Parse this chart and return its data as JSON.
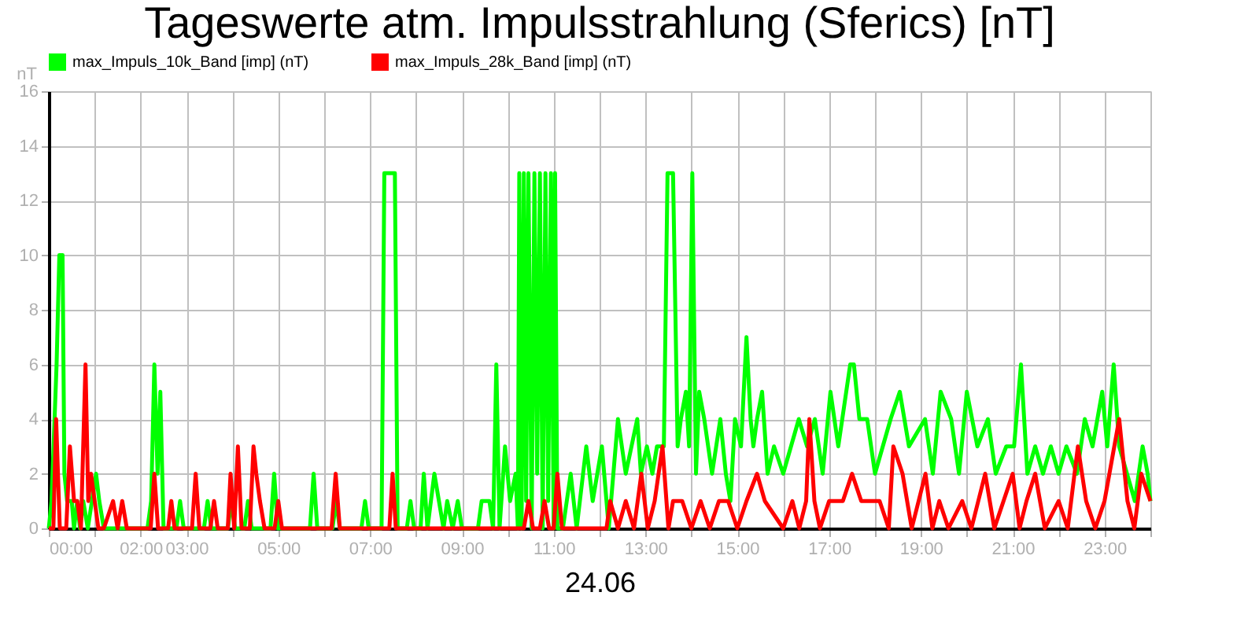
{
  "chart_data": {
    "type": "line",
    "title": "Tageswerte atm. Impulsstrahlung (Sferics) [nT]",
    "xlabel": "24.06",
    "ylabel": "nT",
    "xlim": [
      0,
      24
    ],
    "ylim": [
      0,
      16
    ],
    "yticks": [
      0,
      2,
      4,
      6,
      8,
      10,
      12,
      14,
      16
    ],
    "xticks": [
      {
        "value": 0,
        "label": "00:00"
      },
      {
        "value": 1,
        "label": null
      },
      {
        "value": 2,
        "label": "02:00"
      },
      {
        "value": 3,
        "label": "03:00"
      },
      {
        "value": 4,
        "label": null
      },
      {
        "value": 5,
        "label": "05:00"
      },
      {
        "value": 6,
        "label": null
      },
      {
        "value": 7,
        "label": "07:00"
      },
      {
        "value": 8,
        "label": null
      },
      {
        "value": 9,
        "label": "09:00"
      },
      {
        "value": 10,
        "label": null
      },
      {
        "value": 11,
        "label": "11:00"
      },
      {
        "value": 12,
        "label": null
      },
      {
        "value": 13,
        "label": "13:00"
      },
      {
        "value": 14,
        "label": null
      },
      {
        "value": 15,
        "label": "15:00"
      },
      {
        "value": 16,
        "label": null
      },
      {
        "value": 17,
        "label": "17:00"
      },
      {
        "value": 18,
        "label": null
      },
      {
        "value": 19,
        "label": "19:00"
      },
      {
        "value": 20,
        "label": null
      },
      {
        "value": 21,
        "label": "21:00"
      },
      {
        "value": 22,
        "label": null
      },
      {
        "value": 23,
        "label": "23:00"
      },
      {
        "value": 24,
        "label": null
      }
    ],
    "grid": true,
    "legend": "top left",
    "marker": "none",
    "line_style": "solid",
    "series": [
      {
        "name": "max_Impuls_10k_Band [imp] (nT)",
        "color": "#00ff00",
        "x": [
          0,
          0.06,
          0.17,
          0.23,
          0.3,
          0.34,
          0.4,
          0.5,
          0.55,
          0.62,
          0.68,
          0.75,
          0.85,
          1.03,
          1.1,
          1.2,
          1.3,
          2.15,
          2.23,
          2.3,
          2.37,
          2.43,
          2.5,
          2.78,
          2.86,
          2.94,
          3.38,
          3.46,
          3.54,
          3.9,
          3.98,
          4.06,
          4.26,
          4.34,
          4.42,
          4.83,
          4.91,
          4.99,
          5.69,
          5.77,
          5.85,
          6.18,
          6.26,
          6.34,
          6.81,
          6.89,
          6.97,
          7.25,
          7.31,
          7.54,
          7.6,
          7.8,
          7.88,
          7.96,
          8.1,
          8.17,
          8.25,
          8.4,
          8.5,
          8.6,
          8.68,
          8.8,
          8.91,
          9.0,
          9.35,
          9.43,
          9.6,
          9.68,
          9.75,
          9.82,
          9.94,
          10.05,
          10.17,
          10.22,
          10.25,
          10.3,
          10.35,
          10.4,
          10.45,
          10.52,
          10.58,
          10.64,
          10.7,
          10.76,
          10.82,
          10.88,
          10.94,
          11.0,
          11.03,
          11.08,
          11.2,
          11.37,
          11.5,
          11.71,
          11.85,
          12.05,
          12.2,
          12.4,
          12.57,
          12.82,
          12.9,
          13.03,
          13.15,
          13.25,
          13.4,
          13.48,
          13.6,
          13.7,
          13.77,
          13.88,
          13.95,
          14.02,
          14.1,
          14.17,
          14.28,
          14.45,
          14.63,
          14.75,
          14.85,
          14.95,
          15.08,
          15.2,
          15.29,
          15.35,
          15.43,
          15.54,
          15.66,
          15.8,
          16.0,
          16.34,
          16.52,
          16.69,
          16.86,
          17.03,
          17.2,
          17.46,
          17.54,
          17.66,
          17.83,
          18.0,
          18.34,
          18.54,
          18.74,
          19.09,
          19.26,
          19.43,
          19.66,
          19.83,
          20.0,
          20.23,
          20.46,
          20.63,
          20.86,
          21.03,
          21.18,
          21.32,
          21.49,
          21.66,
          21.83,
          22.0,
          22.17,
          22.4,
          22.57,
          22.74,
          22.95,
          23.06,
          23.2,
          23.32,
          23.49,
          23.66,
          23.83,
          23.94,
          24
        ],
        "values": [
          0,
          1,
          6,
          10,
          10,
          2,
          1,
          1,
          0,
          1,
          0,
          1,
          0,
          2,
          1,
          0,
          0,
          0,
          1,
          6,
          2,
          5,
          0,
          0,
          1,
          0,
          0,
          1,
          0,
          0,
          1,
          0,
          0,
          1,
          0,
          0,
          2,
          0,
          0,
          2,
          0,
          0,
          1,
          0,
          0,
          1,
          0,
          0,
          13,
          13,
          0,
          0,
          1,
          0,
          0,
          2,
          0,
          2,
          1,
          0,
          1,
          0,
          1,
          0,
          0,
          1,
          1,
          0,
          6,
          0,
          3,
          1,
          2,
          0,
          13,
          0,
          13,
          1,
          13,
          0,
          13,
          2,
          13,
          0,
          13,
          1,
          13,
          0,
          13,
          0,
          0,
          2,
          0,
          3,
          1,
          3,
          0,
          4,
          2,
          4,
          2,
          3,
          2,
          3,
          3,
          13,
          13,
          3,
          4,
          5,
          3,
          13,
          2,
          5,
          4,
          2,
          4,
          2,
          1,
          4,
          3,
          7,
          4,
          3,
          4,
          5,
          2,
          3,
          2,
          4,
          3,
          4,
          2,
          5,
          3,
          6,
          6,
          4,
          4,
          2,
          4,
          5,
          3,
          4,
          2,
          5,
          4,
          2,
          5,
          3,
          4,
          2,
          3,
          3,
          6,
          2,
          3,
          2,
          3,
          2,
          3,
          2,
          4,
          3,
          5,
          3,
          6,
          3,
          2,
          1,
          3,
          2,
          1
        ]
      },
      {
        "name": "max_Impuls_28k_Band [imp] (nT)",
        "color": "#ff0000",
        "x": [
          0,
          0.1,
          0.16,
          0.24,
          0.38,
          0.46,
          0.55,
          0.62,
          0.7,
          0.8,
          0.86,
          0.92,
          1.0,
          1.08,
          1.2,
          1.4,
          1.5,
          1.6,
          1.7,
          2.22,
          2.3,
          2.38,
          2.6,
          2.67,
          2.74,
          3.12,
          3.2,
          3.28,
          3.52,
          3.6,
          3.68,
          3.9,
          3.96,
          4.04,
          4.12,
          4.2,
          4.38,
          4.46,
          4.52,
          4.6,
          4.7,
          4.92,
          5.0,
          5.08,
          6.16,
          6.25,
          6.34,
          7.42,
          7.49,
          7.56,
          10.35,
          10.45,
          10.55,
          10.7,
          10.8,
          10.9,
          11.0,
          11.08,
          11.18,
          12.15,
          12.23,
          12.4,
          12.57,
          12.75,
          12.91,
          13.05,
          13.2,
          13.37,
          13.5,
          13.6,
          13.8,
          14.0,
          14.2,
          14.4,
          14.6,
          14.8,
          15.0,
          15.2,
          15.43,
          15.6,
          16.0,
          16.2,
          16.35,
          16.5,
          16.57,
          16.68,
          16.8,
          17.0,
          17.3,
          17.5,
          17.7,
          17.9,
          18.1,
          18.3,
          18.4,
          18.6,
          18.8,
          19.1,
          19.25,
          19.4,
          19.6,
          19.9,
          20.1,
          20.4,
          20.6,
          20.8,
          21.0,
          21.15,
          21.3,
          21.49,
          21.7,
          22.0,
          22.2,
          22.42,
          22.6,
          22.8,
          23.0,
          23.32,
          23.5,
          23.65,
          23.8,
          24
        ],
        "values": [
          0,
          0,
          4,
          0,
          0,
          3,
          1,
          1,
          0,
          6,
          1,
          2,
          1,
          0,
          0,
          1,
          0,
          1,
          0,
          0,
          2,
          0,
          0,
          1,
          0,
          0,
          2,
          0,
          0,
          1,
          0,
          0,
          2,
          0,
          3,
          0,
          0,
          3,
          2,
          1,
          0,
          0,
          1,
          0,
          0,
          2,
          0,
          0,
          2,
          0,
          0,
          1,
          0,
          0,
          1,
          0,
          0,
          2,
          0,
          0,
          1,
          0,
          1,
          0,
          2,
          0,
          1,
          3,
          0,
          1,
          1,
          0,
          1,
          0,
          1,
          1,
          0,
          1,
          2,
          1,
          0,
          1,
          0,
          1,
          4,
          1,
          0,
          1,
          1,
          2,
          1,
          1,
          1,
          0,
          3,
          2,
          0,
          2,
          0,
          1,
          0,
          1,
          0,
          2,
          0,
          1,
          2,
          0,
          1,
          2,
          0,
          1,
          0,
          3,
          1,
          0,
          1,
          4,
          1,
          0,
          2,
          1
        ]
      }
    ]
  }
}
